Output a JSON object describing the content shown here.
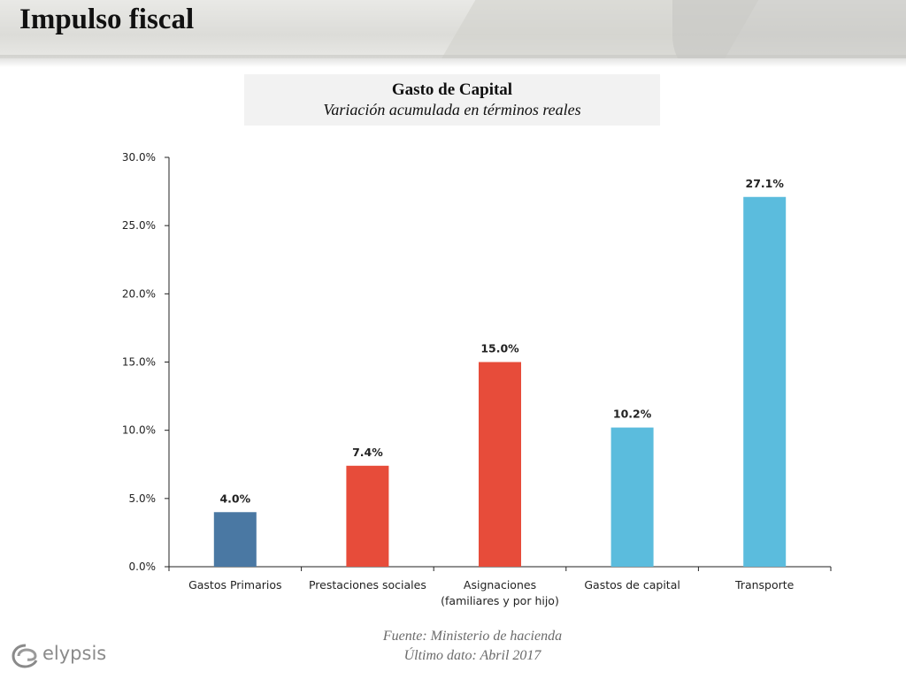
{
  "page": {
    "title": "Impulso fiscal"
  },
  "chart_box": {
    "title": "Gasto de Capital",
    "subtitle": "Variación acumulada en términos reales"
  },
  "chart_data": {
    "type": "bar",
    "title": "Gasto de Capital",
    "subtitle": "Variación acumulada en términos reales",
    "categories": [
      [
        "Gastos Primarios"
      ],
      [
        "Prestaciones sociales"
      ],
      [
        "Asignaciones",
        "(familiares y por hijo)"
      ],
      [
        "Gastos de capital"
      ],
      [
        "Transporte"
      ]
    ],
    "values": [
      4.0,
      7.4,
      15.0,
      10.2,
      27.1
    ],
    "value_labels": [
      "4.0%",
      "7.4%",
      "15.0%",
      "10.2%",
      "27.1%"
    ],
    "bar_colors": [
      "#4a78a3",
      "#e74c3a",
      "#e74c3a",
      "#5bbcdd",
      "#5bbcdd"
    ],
    "ylim": [
      0,
      30
    ],
    "yticks": [
      0,
      5,
      10,
      15,
      20,
      25,
      30
    ],
    "ytick_labels": [
      "0.0%",
      "5.0%",
      "10.0%",
      "15.0%",
      "20.0%",
      "25.0%",
      "30.0%"
    ],
    "xlabel": "",
    "ylabel": "",
    "grid": false,
    "legend": "none"
  },
  "footer": {
    "source": "Fuente: Ministerio de hacienda",
    "last_data": "Último dato: Abril 2017",
    "logo_text": "elypsis"
  }
}
